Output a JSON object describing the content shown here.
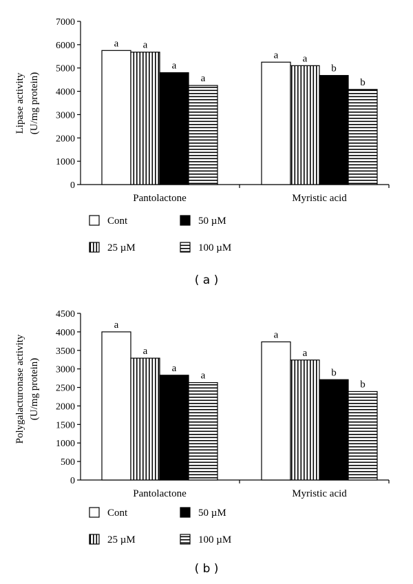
{
  "series_styles": [
    {
      "key": "cont",
      "fill": "#ffffff",
      "pattern": "none"
    },
    {
      "key": "c25",
      "fill": "#ffffff",
      "pattern": "vertical-stripes"
    },
    {
      "key": "c50",
      "fill": "#000000",
      "pattern": "solid"
    },
    {
      "key": "c100",
      "fill": "#ffffff",
      "pattern": "horizontal-stripes"
    }
  ],
  "chart_data": [
    {
      "type": "bar",
      "panel_label": "( a )",
      "ylabel_line1": "Lipase activity",
      "ylabel_line2": "(U/mg protein)",
      "ylim": [
        0,
        7000
      ],
      "yticks": [
        0,
        1000,
        2000,
        3000,
        4000,
        5000,
        6000,
        7000
      ],
      "categories": [
        "Pantolactone",
        "Myristic acid"
      ],
      "series": [
        {
          "name": "Cont",
          "values": [
            5750,
            5250
          ],
          "labels": [
            "a",
            "a"
          ]
        },
        {
          "name": "25 µM",
          "values": [
            5680,
            5100
          ],
          "labels": [
            "a",
            "a"
          ]
        },
        {
          "name": "50 µM",
          "values": [
            4800,
            4680
          ],
          "labels": [
            "a",
            "b"
          ]
        },
        {
          "name": "100 µM",
          "values": [
            4250,
            4080
          ],
          "labels": [
            "a",
            "b"
          ]
        }
      ],
      "legend": [
        "Cont",
        "50 µM",
        "25 µM",
        "100 µM"
      ]
    },
    {
      "type": "bar",
      "panel_label": "( b )",
      "ylabel_line1": "Polygalacturonase activity",
      "ylabel_line2": "(U/mg protein)",
      "ylim": [
        0,
        4500
      ],
      "yticks": [
        0,
        500,
        1000,
        1500,
        2000,
        2500,
        3000,
        3500,
        4000,
        4500
      ],
      "categories": [
        "Pantolactone",
        "Myristic acid"
      ],
      "series": [
        {
          "name": "Cont",
          "values": [
            4000,
            3730
          ],
          "labels": [
            "a",
            "a"
          ]
        },
        {
          "name": "25 µM",
          "values": [
            3290,
            3240
          ],
          "labels": [
            "a",
            "a"
          ]
        },
        {
          "name": "50 µM",
          "values": [
            2830,
            2710
          ],
          "labels": [
            "a",
            "b"
          ]
        },
        {
          "name": "100 µM",
          "values": [
            2630,
            2390
          ],
          "labels": [
            "a",
            "b"
          ]
        }
      ],
      "legend": [
        "Cont",
        "50 µM",
        "25 µM",
        "100 µM"
      ]
    }
  ]
}
